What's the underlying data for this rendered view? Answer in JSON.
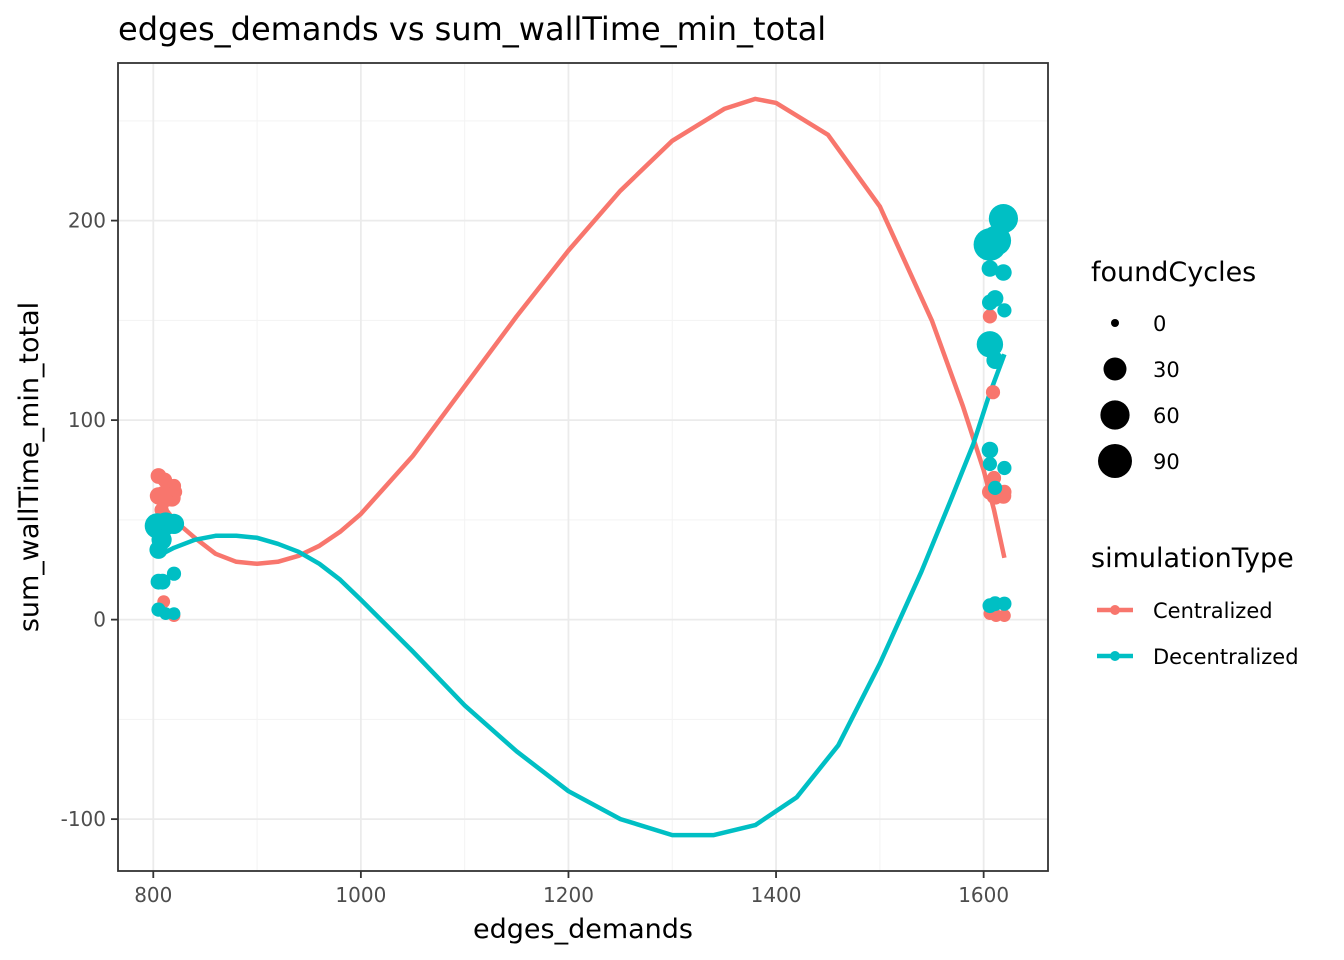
{
  "chart_data": {
    "type": "scatter",
    "title": "edges_demands  vs  sum_wallTime_min_total",
    "xlabel": "edges_demands",
    "ylabel": "sum_wallTime_min_total",
    "xlim": [
      766,
      1662
    ],
    "ylim": [
      -126,
      279
    ],
    "x_ticks": [
      800,
      1000,
      1200,
      1400,
      1600
    ],
    "y_ticks": [
      -100,
      0,
      100,
      200
    ],
    "grid": true,
    "legend_position": "right",
    "size_legend": {
      "title": "foundCycles",
      "entries": [
        {
          "label": "0",
          "value": 0
        },
        {
          "label": "30",
          "value": 30
        },
        {
          "label": "60",
          "value": 60
        },
        {
          "label": "90",
          "value": 90
        }
      ]
    },
    "color_legend": {
      "title": "simulationType"
    },
    "series": [
      {
        "name": "Centralized",
        "color": "#F8766D",
        "points": [
          {
            "x": 805,
            "y": 72,
            "size": 8
          },
          {
            "x": 811,
            "y": 70,
            "size": 6
          },
          {
            "x": 820,
            "y": 67,
            "size": 5
          },
          {
            "x": 821,
            "y": 64,
            "size": 5
          },
          {
            "x": 805,
            "y": 62,
            "size": 12
          },
          {
            "x": 810,
            "y": 63,
            "size": 10
          },
          {
            "x": 818,
            "y": 61,
            "size": 12
          },
          {
            "x": 812,
            "y": 60,
            "size": 6
          },
          {
            "x": 808,
            "y": 55,
            "size": 5
          },
          {
            "x": 810,
            "y": 9,
            "size": 3
          },
          {
            "x": 820,
            "y": 2,
            "size": 3
          },
          {
            "x": 1606,
            "y": 152,
            "size": 5
          },
          {
            "x": 1609,
            "y": 114,
            "size": 5
          },
          {
            "x": 1610,
            "y": 71,
            "size": 5
          },
          {
            "x": 1606,
            "y": 64,
            "size": 8
          },
          {
            "x": 1611,
            "y": 62,
            "size": 12
          },
          {
            "x": 1619,
            "y": 62,
            "size": 8
          },
          {
            "x": 1620,
            "y": 64,
            "size": 5
          },
          {
            "x": 1606,
            "y": 3,
            "size": 3
          },
          {
            "x": 1612,
            "y": 2,
            "size": 3
          },
          {
            "x": 1620,
            "y": 2,
            "size": 3
          }
        ],
        "curve": [
          {
            "x": 805,
            "y": 60
          },
          {
            "x": 820,
            "y": 50
          },
          {
            "x": 840,
            "y": 41
          },
          {
            "x": 860,
            "y": 33
          },
          {
            "x": 880,
            "y": 29
          },
          {
            "x": 900,
            "y": 28
          },
          {
            "x": 920,
            "y": 29
          },
          {
            "x": 940,
            "y": 32
          },
          {
            "x": 960,
            "y": 37
          },
          {
            "x": 980,
            "y": 44
          },
          {
            "x": 1000,
            "y": 53
          },
          {
            "x": 1050,
            "y": 82
          },
          {
            "x": 1100,
            "y": 117
          },
          {
            "x": 1150,
            "y": 152
          },
          {
            "x": 1200,
            "y": 185
          },
          {
            "x": 1250,
            "y": 215
          },
          {
            "x": 1300,
            "y": 240
          },
          {
            "x": 1350,
            "y": 256
          },
          {
            "x": 1380,
            "y": 261
          },
          {
            "x": 1400,
            "y": 259
          },
          {
            "x": 1450,
            "y": 243
          },
          {
            "x": 1500,
            "y": 207
          },
          {
            "x": 1550,
            "y": 150
          },
          {
            "x": 1580,
            "y": 107
          },
          {
            "x": 1600,
            "y": 75
          },
          {
            "x": 1610,
            "y": 55
          },
          {
            "x": 1620,
            "y": 31
          }
        ]
      },
      {
        "name": "Decentralized",
        "color": "#00BFC4",
        "points": [
          {
            "x": 804,
            "y": 47,
            "size": 40
          },
          {
            "x": 812,
            "y": 48,
            "size": 30
          },
          {
            "x": 820,
            "y": 48,
            "size": 20
          },
          {
            "x": 808,
            "y": 40,
            "size": 20
          },
          {
            "x": 805,
            "y": 35,
            "size": 14
          },
          {
            "x": 805,
            "y": 19,
            "size": 8
          },
          {
            "x": 809,
            "y": 19,
            "size": 8
          },
          {
            "x": 820,
            "y": 23,
            "size": 5
          },
          {
            "x": 805,
            "y": 5,
            "size": 5
          },
          {
            "x": 812,
            "y": 3,
            "size": 3
          },
          {
            "x": 820,
            "y": 3,
            "size": 3
          },
          {
            "x": 1619,
            "y": 201,
            "size": 60
          },
          {
            "x": 1612,
            "y": 190,
            "size": 65
          },
          {
            "x": 1606,
            "y": 188,
            "size": 80
          },
          {
            "x": 1606,
            "y": 176,
            "size": 10
          },
          {
            "x": 1619,
            "y": 174,
            "size": 10
          },
          {
            "x": 1611,
            "y": 161,
            "size": 10
          },
          {
            "x": 1606,
            "y": 159,
            "size": 8
          },
          {
            "x": 1620,
            "y": 155,
            "size": 5
          },
          {
            "x": 1606,
            "y": 138,
            "size": 45
          },
          {
            "x": 1611,
            "y": 130,
            "size": 12
          },
          {
            "x": 1606,
            "y": 85,
            "size": 10
          },
          {
            "x": 1606,
            "y": 78,
            "size": 5
          },
          {
            "x": 1620,
            "y": 76,
            "size": 5
          },
          {
            "x": 1611,
            "y": 66,
            "size": 5
          },
          {
            "x": 1606,
            "y": 7,
            "size": 6
          },
          {
            "x": 1611,
            "y": 8,
            "size": 6
          },
          {
            "x": 1620,
            "y": 8,
            "size": 5
          }
        ],
        "curve": [
          {
            "x": 805,
            "y": 32
          },
          {
            "x": 820,
            "y": 36
          },
          {
            "x": 840,
            "y": 40
          },
          {
            "x": 860,
            "y": 42
          },
          {
            "x": 880,
            "y": 42
          },
          {
            "x": 900,
            "y": 41
          },
          {
            "x": 920,
            "y": 38
          },
          {
            "x": 940,
            "y": 34
          },
          {
            "x": 960,
            "y": 28
          },
          {
            "x": 980,
            "y": 20
          },
          {
            "x": 1000,
            "y": 10
          },
          {
            "x": 1050,
            "y": -16
          },
          {
            "x": 1100,
            "y": -43
          },
          {
            "x": 1150,
            "y": -66
          },
          {
            "x": 1200,
            "y": -86
          },
          {
            "x": 1250,
            "y": -100
          },
          {
            "x": 1300,
            "y": -108
          },
          {
            "x": 1340,
            "y": -108
          },
          {
            "x": 1380,
            "y": -103
          },
          {
            "x": 1420,
            "y": -89
          },
          {
            "x": 1460,
            "y": -63
          },
          {
            "x": 1500,
            "y": -22
          },
          {
            "x": 1540,
            "y": 24
          },
          {
            "x": 1570,
            "y": 62
          },
          {
            "x": 1590,
            "y": 88
          },
          {
            "x": 1605,
            "y": 112
          },
          {
            "x": 1620,
            "y": 133
          }
        ]
      }
    ]
  }
}
